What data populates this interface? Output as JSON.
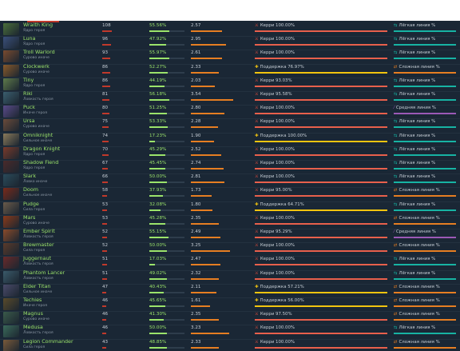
{
  "colors": {
    "table_bg": "#1a2735",
    "hero_name": "#9be36b",
    "subtext": "#8a96a3",
    "role_bar_high": "#e8604c",
    "role_bar_support": "#f1c40f",
    "lane_bar_easy": "#17b3a3",
    "lane_bar_hard": "#e67e22",
    "lane_bar_safe": "#9b59b6"
  },
  "rows": [
    {
      "name": "Wraith King",
      "sub": "Ядро героя",
      "matches": "108",
      "winrate": "55.56%",
      "wr": 0.56,
      "kda": "2.57",
      "kda_v": 2.57,
      "role_icon": "⚔",
      "role": "Керри 100.00%",
      "role_bar": "#e8604c",
      "lane_icon": "⇆",
      "lane": "Лёгкая линия %",
      "lane_bar": "#17b3a3",
      "color": "#4a6e3a"
    },
    {
      "name": "Luna",
      "sub": "Ядро героя",
      "matches": "96",
      "winrate": "47.92%",
      "wr": 0.48,
      "kda": "2.95",
      "kda_v": 2.95,
      "role_icon": "⚔",
      "role": "Керри 100.00%",
      "role_bar": "#e8604c",
      "lane_icon": "⇆",
      "lane": "Лёгкая линия %",
      "lane_bar": "#17b3a3",
      "color": "#3a4f7a"
    },
    {
      "name": "Troll Warlord",
      "sub": "Сурово иначе",
      "matches": "93",
      "winrate": "55.97%",
      "wr": 0.56,
      "kda": "2.61",
      "kda_v": 2.61,
      "role_icon": "⚔",
      "role": "Керри 100.00%",
      "role_bar": "#e8604c",
      "lane_icon": "⇆",
      "lane": "Лёгкая линия %",
      "lane_bar": "#17b3a3",
      "color": "#7a4a2f"
    },
    {
      "name": "Clockwerk",
      "sub": "Сурово иначе",
      "matches": "86",
      "winrate": "52.27%",
      "wr": 0.52,
      "kda": "2.33",
      "kda_v": 2.33,
      "role_icon": "✚",
      "role": "Поддержка 76.97%",
      "role_bar": "#f1c40f",
      "lane_icon": "⇄",
      "lane": "Сложная линия %",
      "lane_bar": "#e67e22",
      "color": "#8a5a2a"
    },
    {
      "name": "Tiny",
      "sub": "Ядро героя",
      "matches": "86",
      "winrate": "44.19%",
      "wr": 0.44,
      "kda": "2.03",
      "kda_v": 2.03,
      "role_icon": "⚔",
      "role": "Керри 93.03%",
      "role_bar": "#e8604c",
      "lane_icon": "⇆",
      "lane": "Лёгкая линия %",
      "lane_bar": "#17b3a3",
      "color": "#5e7a4a"
    },
    {
      "name": "Riki",
      "sub": "Ловкость героя",
      "matches": "81",
      "winrate": "56.18%",
      "wr": 0.56,
      "kda": "3.54",
      "kda_v": 3.54,
      "role_icon": "⚔",
      "role": "Керри 95.58%",
      "role_bar": "#e8604c",
      "lane_icon": "⇆",
      "lane": "Лёгкая линия %",
      "lane_bar": "#17b3a3",
      "color": "#3a5e6e"
    },
    {
      "name": "Puck",
      "sub": "Иначе героя",
      "matches": "80",
      "winrate": "51.25%",
      "wr": 0.51,
      "kda": "2.80",
      "kda_v": 2.8,
      "role_icon": "⚔",
      "role": "Керри 100.00%",
      "role_bar": "#e8604c",
      "lane_icon": "⁄",
      "lane": "Средняя линия %",
      "lane_bar": "#9b59b6",
      "color": "#5a4a8a"
    },
    {
      "name": "Ursa",
      "sub": "Сурово иначе",
      "matches": "75",
      "winrate": "53.33%",
      "wr": 0.53,
      "kda": "2.28",
      "kda_v": 2.28,
      "role_icon": "⚔",
      "role": "Керри 100.00%",
      "role_bar": "#e8604c",
      "lane_icon": "⇆",
      "lane": "Лёгкая линия %",
      "lane_bar": "#17b3a3",
      "color": "#6a4a3a"
    },
    {
      "name": "Omniknight",
      "sub": "Сильное иначе",
      "matches": "74",
      "winrate": "17.23%",
      "wr": 0.17,
      "kda": "1.90",
      "kda_v": 1.9,
      "role_icon": "✚",
      "role": "Поддержка 100.00%",
      "role_bar": "#f1c40f",
      "lane_icon": "⇆",
      "lane": "Лёгкая линия %",
      "lane_bar": "#17b3a3",
      "color": "#8a7a5a"
    },
    {
      "name": "Dragon Knight",
      "sub": "Ядро героя",
      "matches": "70",
      "winrate": "45.29%",
      "wr": 0.45,
      "kda": "2.52",
      "kda_v": 2.52,
      "role_icon": "⚔",
      "role": "Керри 100.00%",
      "role_bar": "#e8604c",
      "lane_icon": "⇆",
      "lane": "Лёгкая линия %",
      "lane_bar": "#17b3a3",
      "color": "#7a3a2a"
    },
    {
      "name": "Shadow Fiend",
      "sub": "Ядро героя",
      "matches": "67",
      "winrate": "45.45%",
      "wr": 0.45,
      "kda": "2.74",
      "kda_v": 2.74,
      "role_icon": "⚔",
      "role": "Керри 100.00%",
      "role_bar": "#e8604c",
      "lane_icon": "⇆",
      "lane": "Лёгкая линия %",
      "lane_bar": "#17b3a3",
      "color": "#4a2a2a"
    },
    {
      "name": "Slark",
      "sub": "Ловко иначе",
      "matches": "66",
      "winrate": "50.00%",
      "wr": 0.5,
      "kda": "2.81",
      "kda_v": 2.81,
      "role_icon": "⚔",
      "role": "Керри 100.00%",
      "role_bar": "#e8604c",
      "lane_icon": "⇆",
      "lane": "Лёгкая линия %",
      "lane_bar": "#17b3a3",
      "color": "#2a4a5a"
    },
    {
      "name": "Doom",
      "sub": "Сильное иначе",
      "matches": "58",
      "winrate": "37.93%",
      "wr": 0.38,
      "kda": "1.73",
      "kda_v": 1.73,
      "role_icon": "⚔",
      "role": "Керри 95.00%",
      "role_bar": "#e8604c",
      "lane_icon": "⇄",
      "lane": "Сложная линия %",
      "lane_bar": "#e67e22",
      "color": "#7a2a1a"
    },
    {
      "name": "Pudge",
      "sub": "Сила героя",
      "matches": "53",
      "winrate": "32.08%",
      "wr": 0.32,
      "kda": "1.80",
      "kda_v": 1.8,
      "role_icon": "✚",
      "role": "Поддержка 64.71%",
      "role_bar": "#f1c40f",
      "lane_icon": "⇆",
      "lane": "Лёгкая линия %",
      "lane_bar": "#17b3a3",
      "color": "#6a5a4a"
    },
    {
      "name": "Mars",
      "sub": "Сурово иначе",
      "matches": "53",
      "winrate": "45.28%",
      "wr": 0.45,
      "kda": "2.35",
      "kda_v": 2.35,
      "role_icon": "⚔",
      "role": "Керри 100.00%",
      "role_bar": "#e8604c",
      "lane_icon": "⇄",
      "lane": "Сложная линия %",
      "lane_bar": "#e67e22",
      "color": "#8a3a1a"
    },
    {
      "name": "Ember Spirit",
      "sub": "Ловкость героя",
      "matches": "52",
      "winrate": "55.15%",
      "wr": 0.55,
      "kda": "2.49",
      "kda_v": 2.49,
      "role_icon": "⚔",
      "role": "Керри 95.29%",
      "role_bar": "#e8604c",
      "lane_icon": "⁄",
      "lane": "Средняя линия %",
      "lane_bar": "#9b59b6",
      "color": "#8a4a2a"
    },
    {
      "name": "Brewmaster",
      "sub": "Сила героя",
      "matches": "52",
      "winrate": "50.00%",
      "wr": 0.5,
      "kda": "3.25",
      "kda_v": 3.25,
      "role_icon": "⚔",
      "role": "Керри 100.00%",
      "role_bar": "#e8604c",
      "lane_icon": "⇄",
      "lane": "Сложная линия %",
      "lane_bar": "#e67e22",
      "color": "#5a3a2a"
    },
    {
      "name": "Juggernaut",
      "sub": "Ловкость героя",
      "matches": "51",
      "winrate": "17.03%",
      "wr": 0.17,
      "kda": "2.47",
      "kda_v": 2.47,
      "role_icon": "⚔",
      "role": "Керри 100.00%",
      "role_bar": "#e8604c",
      "lane_icon": "⇆",
      "lane": "Лёгкая линия %",
      "lane_bar": "#17b3a3",
      "color": "#6a2a2a"
    },
    {
      "name": "Phantom Lancer",
      "sub": "Ловкость героя",
      "matches": "51",
      "winrate": "49.02%",
      "wr": 0.49,
      "kda": "2.32",
      "kda_v": 2.32,
      "role_icon": "⚔",
      "role": "Керри 100.00%",
      "role_bar": "#e8604c",
      "lane_icon": "⇆",
      "lane": "Лёгкая линия %",
      "lane_bar": "#17b3a3",
      "color": "#3a5a6a"
    },
    {
      "name": "Elder Titan",
      "sub": "Сильное иначе",
      "matches": "47",
      "winrate": "40.43%",
      "wr": 0.4,
      "kda": "2.11",
      "kda_v": 2.11,
      "role_icon": "✚",
      "role": "Поддержка 57.21%",
      "role_bar": "#f1c40f",
      "lane_icon": "⇄",
      "lane": "Сложная линия %",
      "lane_bar": "#e67e22",
      "color": "#4a4a6a"
    },
    {
      "name": "Techies",
      "sub": "Иначе героя",
      "matches": "46",
      "winrate": "45.65%",
      "wr": 0.46,
      "kda": "1.61",
      "kda_v": 1.61,
      "role_icon": "✚",
      "role": "Поддержка 56.00%",
      "role_bar": "#f1c40f",
      "lane_icon": "⇄",
      "lane": "Сложная линия %",
      "lane_bar": "#e67e22",
      "color": "#5a4a2a"
    },
    {
      "name": "Magnus",
      "sub": "Сурово иначе",
      "matches": "46",
      "winrate": "41.30%",
      "wr": 0.41,
      "kda": "2.35",
      "kda_v": 2.35,
      "role_icon": "⚔",
      "role": "Керри 97.50%",
      "role_bar": "#e8604c",
      "lane_icon": "⇄",
      "lane": "Сложная линия %",
      "lane_bar": "#e67e22",
      "color": "#3a5a4a"
    },
    {
      "name": "Medusa",
      "sub": "Ловкость героя",
      "matches": "46",
      "winrate": "50.00%",
      "wr": 0.5,
      "kda": "3.23",
      "kda_v": 3.23,
      "role_icon": "⚔",
      "role": "Керри 100.00%",
      "role_bar": "#e8604c",
      "lane_icon": "⇆",
      "lane": "Лёгкая линия %",
      "lane_bar": "#17b3a3",
      "color": "#3a6a5a"
    },
    {
      "name": "Legion Commander",
      "sub": "Сила героя",
      "matches": "43",
      "winrate": "48.85%",
      "wr": 0.49,
      "kda": "2.33",
      "kda_v": 2.33,
      "role_icon": "⚔",
      "role": "Керри 100.00%",
      "role_bar": "#e8604c",
      "lane_icon": "⇄",
      "lane": "Сложная линия %",
      "lane_bar": "#e67e22",
      "color": "#7a5a3a"
    }
  ]
}
